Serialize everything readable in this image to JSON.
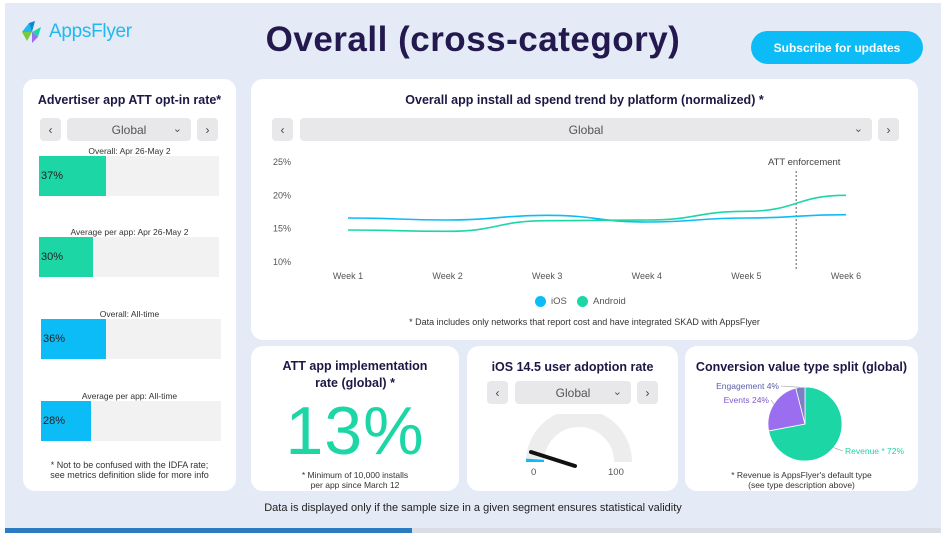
{
  "header": {
    "logo_text": "AppsFlyer",
    "title": "Overall (cross-category)",
    "subscribe_label": "Subscribe for updates"
  },
  "optin": {
    "title": "Advertiser app ATT opt-in rate*",
    "selector": "Global",
    "bars": [
      {
        "caption": "Overall: Apr 26-May 2",
        "label": "37%",
        "value": 37,
        "color": "#1dd6a6"
      },
      {
        "caption": "Average per app: Apr 26-May 2",
        "label": "30%",
        "value": 30,
        "color": "#1dd6a6"
      },
      {
        "caption": "Overall: All-time",
        "label": "36%",
        "value": 36,
        "color": "#0bbcf6"
      },
      {
        "caption": "Average per app: All-time",
        "label": "28%",
        "value": 28,
        "color": "#0bbcf6"
      }
    ],
    "note_line1": "* Not to be confused with the IDFA rate;",
    "note_line2": "see metrics definition slide for more info"
  },
  "spend_trend": {
    "title": "Overall app install ad spend trend by platform (normalized) *",
    "selector": "Global",
    "annotation": "ATT enforcement",
    "note": "* Data includes only networks that report cost and have integrated SKAD with AppsFlyer",
    "chart_data": {
      "type": "line",
      "x": [
        "Week 1",
        "Week 2",
        "Week 3",
        "Week 4",
        "Week 5",
        "Week 6"
      ],
      "y_ticks": [
        "25%",
        "20%",
        "15%",
        "10%"
      ],
      "ylim": [
        10,
        25
      ],
      "series": [
        {
          "name": "iOS",
          "color": "#0bbcf6",
          "values": [
            16.6,
            16.3,
            17.0,
            16.0,
            16.6,
            17.1
          ]
        },
        {
          "name": "Android",
          "color": "#1dd6a6",
          "values": [
            14.8,
            14.6,
            16.2,
            16.3,
            17.6,
            20.0
          ]
        }
      ],
      "vline_x": 5.5,
      "grid": false
    }
  },
  "att_impl": {
    "title_line1": "ATT app implementation",
    "title_line2": "rate (global) *",
    "value": "13%",
    "note_line1": "* Minimum of 10,000 installs",
    "note_line2": "per app since March 12"
  },
  "ios_adoption": {
    "title": "iOS 14.5 user adoption rate",
    "selector": "Global",
    "gauge_min": "0",
    "gauge_max": "100",
    "gauge_value": 2
  },
  "conv_value": {
    "title": "Conversion value type split (global)",
    "chart_data": {
      "type": "pie",
      "slices": [
        {
          "label": "Revenue * 72%",
          "value": 72,
          "color": "#1dd6a6"
        },
        {
          "label": "Events 24%",
          "value": 24,
          "color": "#9b6ef0"
        },
        {
          "label": "Engagement 4%",
          "value": 4,
          "color": "#7b7fc6"
        }
      ]
    },
    "note_line1": "* Revenue is AppsFlyer's default type",
    "note_line2": "(see type description above)"
  },
  "footer": {
    "note": "Data is displayed only if the sample size in a given segment ensures statistical validity",
    "progress": 0.435
  }
}
